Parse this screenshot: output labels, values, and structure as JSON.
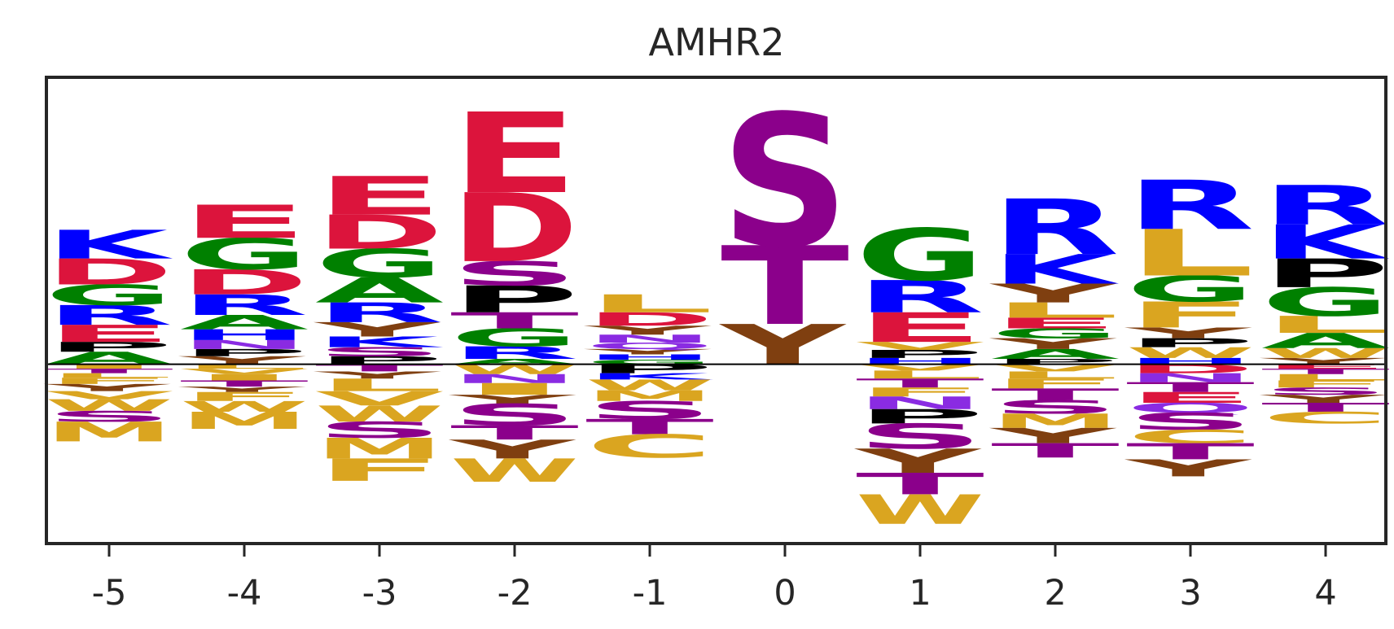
{
  "chart_data": {
    "type": "sequence-logo",
    "title": "AMHR2",
    "xlabel": "",
    "ylabel": "",
    "x": [
      -5,
      -4,
      -3,
      -2,
      -1,
      0,
      1,
      2,
      3,
      4
    ],
    "ylim": [
      -2.0,
      3.2
    ],
    "grid": false,
    "colors": {
      "E": "#dc143c",
      "D": "#dc143c",
      "K": "#0000ff",
      "R": "#0000ff",
      "H": "#0000ff",
      "G": "#008000",
      "A": "#008000",
      "S": "#8b008b",
      "T": "#8b008b",
      "C": "#daa520",
      "P": "#000000",
      "Y": "#7f3f10",
      "L": "#daa520",
      "V": "#daa520",
      "I": "#daa520",
      "F": "#daa520",
      "W": "#daa520",
      "M": "#daa520",
      "N": "#8a2be2",
      "Q": "#8a2be2"
    },
    "positions": [
      {
        "pos": "-5",
        "up": [
          [
            "A",
            0.14
          ],
          [
            "P",
            0.11
          ],
          [
            "E",
            0.19
          ],
          [
            "R",
            0.22
          ],
          [
            "G",
            0.23
          ],
          [
            "D",
            0.29
          ],
          [
            "K",
            0.32
          ]
        ],
        "down": [
          [
            "I",
            0.05
          ],
          [
            "T",
            0.05
          ],
          [
            "L",
            0.05
          ],
          [
            "F",
            0.07
          ],
          [
            "Y",
            0.08
          ],
          [
            "V",
            0.09
          ],
          [
            "W",
            0.13
          ],
          [
            "S",
            0.12
          ],
          [
            "M",
            0.22
          ]
        ]
      },
      {
        "pos": "-4",
        "up": [
          [
            "Y",
            0.09
          ],
          [
            "P",
            0.08
          ],
          [
            "N",
            0.1
          ],
          [
            "H",
            0.12
          ],
          [
            "A",
            0.16
          ],
          [
            "R",
            0.23
          ],
          [
            "D",
            0.28
          ],
          [
            "G",
            0.35
          ],
          [
            "E",
            0.37
          ]
        ],
        "down": [
          [
            "L",
            0.05
          ],
          [
            "V",
            0.06
          ],
          [
            "I",
            0.07
          ],
          [
            "T",
            0.07
          ],
          [
            "Y",
            0.06
          ],
          [
            "F",
            0.1
          ],
          [
            "W",
            0.12
          ],
          [
            "M",
            0.19
          ]
        ]
      },
      {
        "pos": "-3",
        "up": [
          [
            "P",
            0.09
          ],
          [
            "S",
            0.1
          ],
          [
            "K",
            0.12
          ],
          [
            "Y",
            0.16
          ],
          [
            "R",
            0.22
          ],
          [
            "A",
            0.28
          ],
          [
            "G",
            0.32
          ],
          [
            "D",
            0.38
          ],
          [
            "E",
            0.43
          ]
        ],
        "down": [
          [
            "T",
            0.08
          ],
          [
            "Y",
            0.08
          ],
          [
            "L",
            0.14
          ],
          [
            "V",
            0.16
          ],
          [
            "W",
            0.18
          ],
          [
            "S",
            0.18
          ],
          [
            "M",
            0.23
          ],
          [
            "F",
            0.25
          ]
        ]
      },
      {
        "pos": "-2",
        "up": [
          [
            "A",
            0.06
          ],
          [
            "R",
            0.14
          ],
          [
            "G",
            0.2
          ],
          [
            "T",
            0.18
          ],
          [
            "P",
            0.3
          ],
          [
            "S",
            0.27
          ],
          [
            "D",
            0.77
          ],
          [
            "E",
            0.9
          ]
        ],
        "down": [
          [
            "W",
            0.11
          ],
          [
            "N",
            0.1
          ],
          [
            "I",
            0.13
          ],
          [
            "Y",
            0.1
          ],
          [
            "S",
            0.24
          ],
          [
            "T",
            0.16
          ],
          [
            "Y",
            0.21
          ],
          [
            "W",
            0.26
          ]
        ]
      },
      {
        "pos": "-1",
        "up": [
          [
            "G",
            0.05
          ],
          [
            "H",
            0.06
          ],
          [
            "Y",
            0.06
          ],
          [
            "Q",
            0.07
          ],
          [
            "N",
            0.09
          ],
          [
            "Y",
            0.1
          ],
          [
            "D",
            0.15
          ],
          [
            "L",
            0.2
          ]
        ],
        "down": [
          [
            "P",
            0.1
          ],
          [
            "K",
            0.07
          ],
          [
            "W",
            0.12
          ],
          [
            "M",
            0.12
          ],
          [
            "S",
            0.2
          ],
          [
            "T",
            0.17
          ],
          [
            "C",
            0.26
          ]
        ]
      },
      {
        "pos": "0",
        "up": [
          [
            "Y",
            0.45
          ],
          [
            "T",
            0.88
          ],
          [
            "S",
            1.48
          ]
        ],
        "down": []
      },
      {
        "pos": "1",
        "up": [
          [
            "H",
            0.07
          ],
          [
            "P",
            0.09
          ],
          [
            "V",
            0.09
          ],
          [
            "E",
            0.33
          ],
          [
            "R",
            0.36
          ],
          [
            "G",
            0.58
          ]
        ],
        "down": [
          [
            "V",
            0.07
          ],
          [
            "L",
            0.09
          ],
          [
            "T",
            0.1
          ],
          [
            "F",
            0.1
          ],
          [
            "N",
            0.14
          ],
          [
            "P",
            0.16
          ],
          [
            "S",
            0.28
          ],
          [
            "Y",
            0.27
          ],
          [
            "T",
            0.24
          ],
          [
            "W",
            0.33
          ]
        ]
      },
      {
        "pos": "2",
        "up": [
          [
            "P",
            0.06
          ],
          [
            "A",
            0.11
          ],
          [
            "Y",
            0.12
          ],
          [
            "G",
            0.11
          ],
          [
            "E",
            0.12
          ],
          [
            "L",
            0.17
          ],
          [
            "Y",
            0.21
          ],
          [
            "K",
            0.33
          ],
          [
            "R",
            0.62
          ]
        ],
        "down": [
          [
            "V",
            0.08
          ],
          [
            "L",
            0.08
          ],
          [
            "F",
            0.11
          ],
          [
            "T",
            0.13
          ],
          [
            "S",
            0.15
          ],
          [
            "M",
            0.16
          ],
          [
            "Y",
            0.17
          ],
          [
            "T",
            0.16
          ]
        ]
      },
      {
        "pos": "3",
        "up": [
          [
            "H",
            0.07
          ],
          [
            "W",
            0.12
          ],
          [
            "P",
            0.1
          ],
          [
            "Y",
            0.12
          ],
          [
            "F",
            0.29
          ],
          [
            "G",
            0.29
          ],
          [
            "L",
            0.52
          ],
          [
            "R",
            0.55
          ]
        ],
        "down": [
          [
            "D",
            0.1
          ],
          [
            "N",
            0.1
          ],
          [
            "T",
            0.11
          ],
          [
            "E",
            0.12
          ],
          [
            "Q",
            0.11
          ],
          [
            "S",
            0.19
          ],
          [
            "C",
            0.15
          ],
          [
            "T",
            0.18
          ],
          [
            "Y",
            0.19
          ]
        ]
      },
      {
        "pos": "4",
        "up": [
          [
            "Y",
            0.07
          ],
          [
            "W",
            0.11
          ],
          [
            "A",
            0.17
          ],
          [
            "L",
            0.19
          ],
          [
            "G",
            0.32
          ],
          [
            "P",
            0.32
          ],
          [
            "K",
            0.38
          ],
          [
            "R",
            0.44
          ]
        ],
        "down": [
          [
            "E",
            0.05
          ],
          [
            "T",
            0.06
          ],
          [
            "L",
            0.07
          ],
          [
            "F",
            0.08
          ],
          [
            "S",
            0.08
          ],
          [
            "Y",
            0.09
          ],
          [
            "T",
            0.1
          ],
          [
            "C",
            0.13
          ]
        ]
      }
    ]
  }
}
